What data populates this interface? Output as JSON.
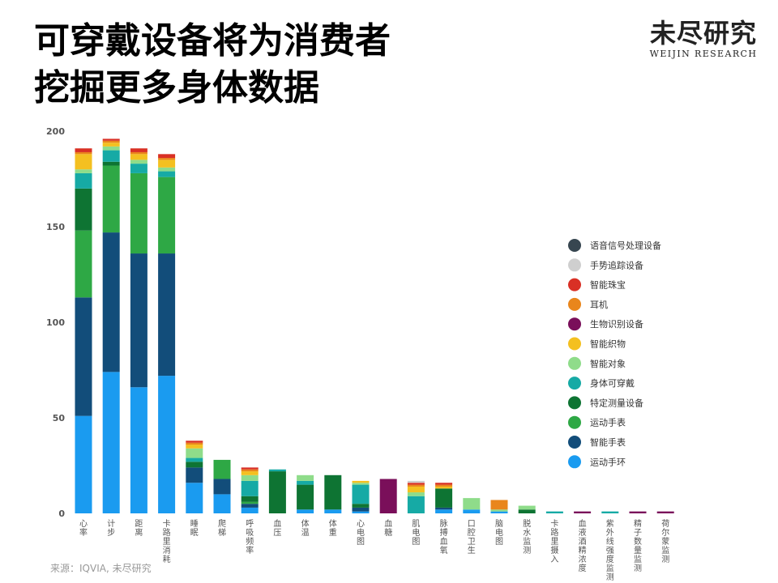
{
  "title": {
    "line1": "可穿戴设备将为消费者",
    "line2": "挖掘更多身体数据"
  },
  "logo": {
    "main": "未尽研究",
    "sub": "WEIJIN RESEARCH"
  },
  "source": "来源：IQVIA, 未尽研究",
  "chart_data": {
    "type": "bar",
    "stacked": true,
    "ylim": [
      0,
      200
    ],
    "yticks": [
      0,
      50,
      100,
      150,
      200
    ],
    "grid": false,
    "legend_position": "right",
    "categories": [
      "心率",
      "计步",
      "距离",
      "卡路里消耗",
      "睡眠",
      "爬梯",
      "呼吸频率",
      "血压",
      "体温",
      "体重",
      "心电图",
      "血糖",
      "肌电图",
      "脉搏血氧",
      "口腔卫生",
      "脑电图",
      "脱水监测",
      "卡路里摄入",
      "血液酒精浓度",
      "紫外线强度监测",
      "精子数量监测",
      "荷尔蒙监测"
    ],
    "series": [
      {
        "name": "运动手环",
        "color": "#1a9bf0",
        "values": [
          51,
          74,
          66,
          72,
          16,
          10,
          3,
          0,
          2,
          2,
          1,
          0,
          0,
          2,
          2,
          1,
          0,
          0,
          0,
          0,
          0,
          0
        ]
      },
      {
        "name": "智能手表",
        "color": "#124d7a",
        "values": [
          62,
          73,
          70,
          64,
          8,
          8,
          2,
          0,
          0,
          0,
          2,
          0,
          0,
          1,
          0,
          0,
          0,
          0,
          0,
          0,
          0,
          0
        ]
      },
      {
        "name": "运动手表",
        "color": "#2ea845",
        "values": [
          35,
          35,
          42,
          40,
          0,
          10,
          1,
          0,
          0,
          0,
          0,
          0,
          0,
          0,
          0,
          0,
          0,
          0,
          0,
          0,
          0,
          0
        ]
      },
      {
        "name": "特定测量设备",
        "color": "#0e7433",
        "values": [
          22,
          2,
          0,
          0,
          3,
          0,
          3,
          22,
          13,
          18,
          2,
          0,
          0,
          10,
          0,
          0,
          2,
          0,
          0,
          0,
          0,
          0
        ]
      },
      {
        "name": "身体可穿戴",
        "color": "#16aaa5",
        "values": [
          8,
          6,
          5,
          3,
          2,
          0,
          8,
          1,
          2,
          0,
          10,
          0,
          9,
          0,
          0,
          0,
          0,
          1,
          0,
          1,
          0,
          0
        ]
      },
      {
        "name": "智能对象",
        "color": "#8fdc8a",
        "values": [
          2,
          2,
          2,
          2,
          5,
          0,
          3,
          0,
          3,
          0,
          1,
          0,
          2,
          0,
          6,
          1,
          2,
          0,
          0,
          0,
          0,
          0
        ]
      },
      {
        "name": "智能织物",
        "color": "#f4c020",
        "values": [
          8,
          2,
          3,
          4,
          2,
          0,
          2,
          0,
          0,
          0,
          1,
          0,
          3,
          1,
          0,
          0,
          0,
          0,
          0,
          0,
          0,
          0
        ]
      },
      {
        "name": "生物识别设备",
        "color": "#7a0f5a",
        "values": [
          0,
          0,
          0,
          0,
          0,
          0,
          0,
          0,
          0,
          0,
          0,
          18,
          0,
          0,
          0,
          0,
          0,
          0,
          1,
          0,
          1,
          1
        ]
      },
      {
        "name": "耳机",
        "color": "#e9861c",
        "values": [
          1,
          1,
          1,
          1,
          1,
          0,
          1,
          0,
          0,
          0,
          0,
          0,
          1,
          1,
          0,
          5,
          0,
          0,
          0,
          0,
          0,
          0
        ]
      },
      {
        "name": "智能珠宝",
        "color": "#d93025",
        "values": [
          2,
          1,
          2,
          2,
          1,
          0,
          1,
          0,
          0,
          0,
          0,
          0,
          1,
          1,
          0,
          0,
          0,
          0,
          0,
          0,
          0,
          0
        ]
      },
      {
        "name": "手势追踪设备",
        "color": "#cfcfcf",
        "values": [
          0,
          0,
          0,
          0,
          0,
          0,
          0,
          0,
          0,
          0,
          0,
          0,
          1,
          0,
          0,
          0,
          0,
          0,
          0,
          0,
          0,
          0
        ]
      },
      {
        "name": "语音信号处理设备",
        "color": "#374650",
        "values": [
          0,
          0,
          0,
          0,
          0,
          0,
          0,
          0,
          0,
          0,
          0,
          0,
          0,
          0,
          0,
          0,
          0,
          0,
          0,
          0,
          0,
          0
        ]
      }
    ]
  }
}
